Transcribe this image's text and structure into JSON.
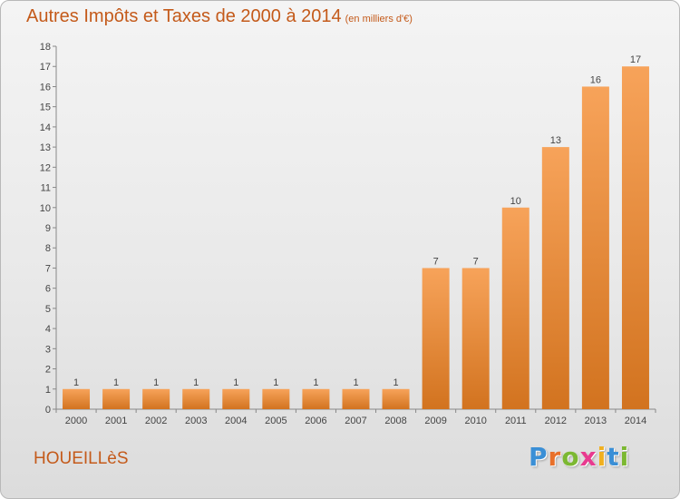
{
  "header": {
    "title": "Autres Impôts et Taxes de 2000 à 2014",
    "subtitle": "(en milliers d'€)"
  },
  "footer": {
    "commune": "HOUEILLèS",
    "brand": "Proxiti",
    "brand_colors": [
      "#3a8fd6",
      "#e8702a",
      "#7cb832",
      "#e83a8f",
      "#f0b020",
      "#3a8fd6",
      "#7cb832"
    ]
  },
  "colors": {
    "accent": "#c45a1a",
    "bar_top": "#f7a35a",
    "bar_bottom": "#d2731f"
  },
  "chart_data": {
    "type": "bar",
    "categories": [
      "2000",
      "2001",
      "2002",
      "2003",
      "2004",
      "2005",
      "2006",
      "2007",
      "2008",
      "2009",
      "2010",
      "2011",
      "2012",
      "2013",
      "2014"
    ],
    "values": [
      1,
      1,
      1,
      1,
      1,
      1,
      1,
      1,
      1,
      7,
      7,
      10,
      13,
      16,
      17
    ],
    "ylim": [
      0,
      18
    ],
    "yticks": [
      0,
      1,
      2,
      3,
      4,
      5,
      6,
      7,
      8,
      9,
      10,
      11,
      12,
      13,
      14,
      15,
      16,
      17,
      18
    ],
    "grid": false,
    "data_labels": true
  }
}
